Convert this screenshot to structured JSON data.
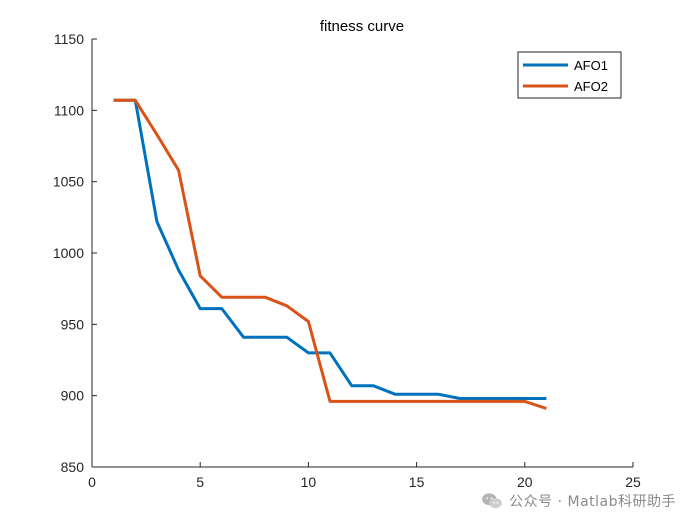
{
  "chart_data": {
    "type": "line",
    "title": "fitness curve",
    "xlabel": "",
    "ylabel": "",
    "xlim": [
      0,
      25
    ],
    "ylim": [
      850,
      1150
    ],
    "xticks": [
      0,
      5,
      10,
      15,
      20,
      25
    ],
    "yticks": [
      850,
      900,
      950,
      1000,
      1050,
      1100,
      1150
    ],
    "legend_position": "top-right",
    "series": [
      {
        "name": "AFO1",
        "color": "#0072BD",
        "x": [
          1,
          2,
          3,
          4,
          5,
          6,
          7,
          8,
          9,
          10,
          11,
          12,
          13,
          14,
          15,
          16,
          17,
          18,
          19,
          20,
          21
        ],
        "y": [
          1107,
          1107,
          1022,
          988,
          961,
          961,
          941,
          941,
          941,
          930,
          930,
          907,
          907,
          901,
          901,
          901,
          898,
          898,
          898,
          898,
          898
        ]
      },
      {
        "name": "AFO2",
        "color": "#D95319",
        "x": [
          1,
          2,
          3,
          4,
          5,
          6,
          7,
          8,
          9,
          10,
          11,
          12,
          13,
          14,
          15,
          16,
          17,
          18,
          19,
          20,
          21
        ],
        "y": [
          1107,
          1107,
          1083,
          1058,
          984,
          969,
          969,
          969,
          963,
          952,
          896,
          896,
          896,
          896,
          896,
          896,
          896,
          896,
          896,
          896,
          891
        ]
      }
    ]
  },
  "watermark": {
    "text": "公众号 · Matlab科研助手",
    "icon": "wechat-icon"
  }
}
